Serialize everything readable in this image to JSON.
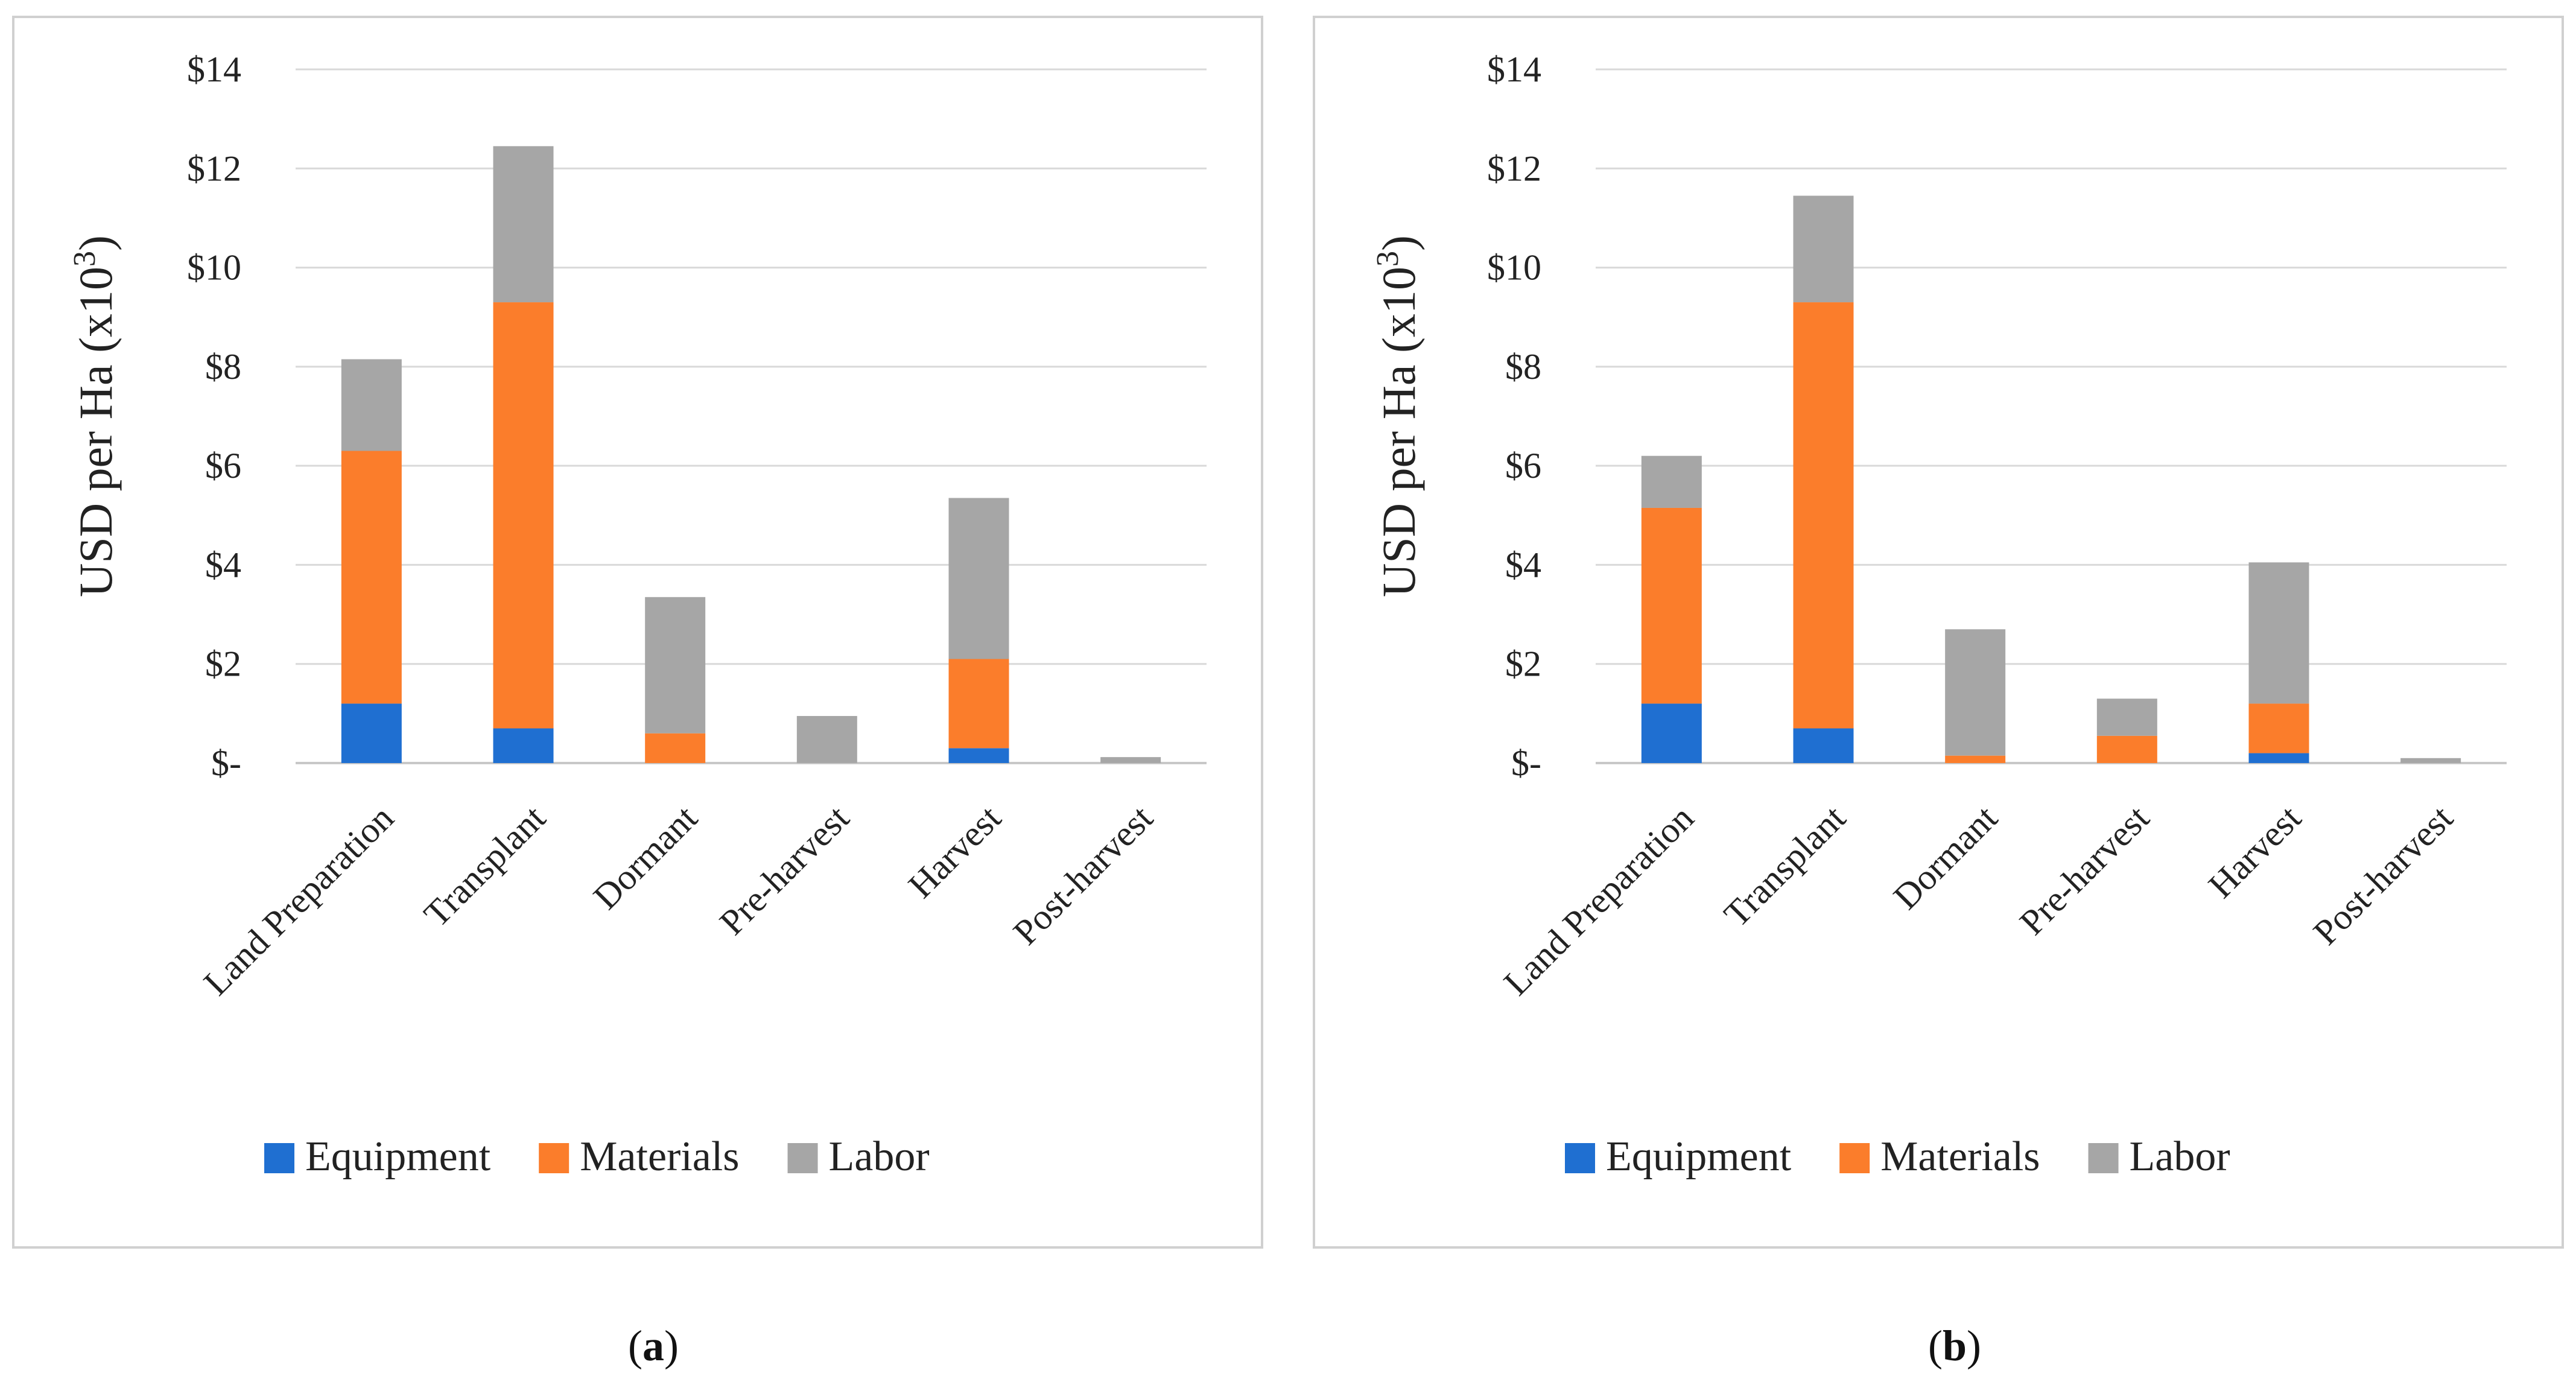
{
  "y_axis_label": {
    "main": "USD per Ha (x10",
    "sup": "3",
    "end": ")"
  },
  "colors": {
    "Equipment": "#1f6fd1",
    "Materials": "#fb7d2b",
    "Labor": "#a6a6a6",
    "grid": "#d9d9d9",
    "frame": "#d0d0d0"
  },
  "chart_data": [
    {
      "type": "bar",
      "stacked": true,
      "panel_label": "a",
      "categories": [
        "Land Preparation",
        "Transplant",
        "Dormant",
        "Pre-harvest",
        "Harvest",
        "Post-harvest"
      ],
      "series": [
        {
          "name": "Equipment",
          "values": [
            1.2,
            0.7,
            0.0,
            0.0,
            0.3,
            0.0
          ]
        },
        {
          "name": "Materials",
          "values": [
            5.1,
            8.6,
            0.6,
            0.0,
            1.8,
            0.0
          ]
        },
        {
          "name": "Labor",
          "values": [
            1.85,
            3.15,
            2.75,
            0.95,
            3.25,
            0.12
          ]
        }
      ],
      "y_ticks": [
        "$-",
        "$2",
        "$4",
        "$6",
        "$8",
        "$10",
        "$12",
        "$14"
      ],
      "ylim": [
        0,
        14
      ],
      "grid": true,
      "legend_position": "bottom"
    },
    {
      "type": "bar",
      "stacked": true,
      "panel_label": "b",
      "categories": [
        "Land Preparation",
        "Transplant",
        "Dormant",
        "Pre-harvest",
        "Harvest",
        "Post-harvest"
      ],
      "series": [
        {
          "name": "Equipment",
          "values": [
            1.2,
            0.7,
            0.0,
            0.0,
            0.2,
            0.0
          ]
        },
        {
          "name": "Materials",
          "values": [
            3.95,
            8.6,
            0.15,
            0.55,
            1.0,
            0.0
          ]
        },
        {
          "name": "Labor",
          "values": [
            1.05,
            2.15,
            2.55,
            0.75,
            2.85,
            0.1
          ]
        }
      ],
      "y_ticks": [
        "$-",
        "$2",
        "$4",
        "$6",
        "$8",
        "$10",
        "$12",
        "$14"
      ],
      "ylim": [
        0,
        14
      ],
      "grid": true,
      "legend_position": "bottom"
    }
  ]
}
